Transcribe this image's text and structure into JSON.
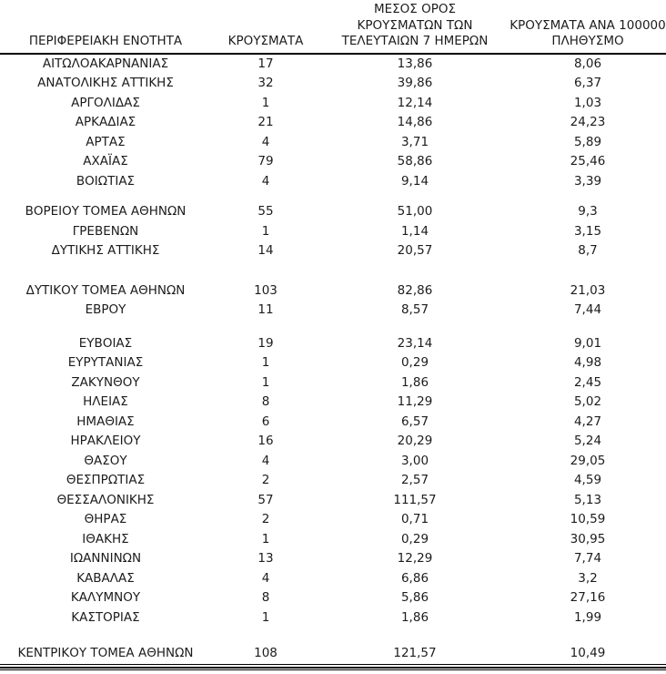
{
  "page": {
    "background": "#ffffff",
    "text_color": "#1c1c1c",
    "rule_color": "#000000"
  },
  "table": {
    "header": {
      "region": [
        "ΠΕΡΙΦΕΡΕΙΑΚΗ ΕΝΟΤΗΤΑ"
      ],
      "cases": [
        "ΚΡΟΥΣΜΑΤΑ"
      ],
      "avg7": [
        "ΜΕΣΟΣ ΟΡΟΣ",
        "ΚΡΟΥΣΜΑΤΩΝ ΤΩΝ",
        "ΤΕΛΕΥΤΑΙΩΝ 7 ΗΜΕΡΩΝ"
      ],
      "per100k": [
        "ΚΡΟΥΣΜΑΤΑ ΑΝΑ 100000",
        "ΠΛΗΘΥΣΜΟ"
      ]
    },
    "spacers": [
      {
        "after_row": 6,
        "height": 12
      },
      {
        "after_row": 9,
        "height": 22
      },
      {
        "after_row": 11,
        "height": 15
      },
      {
        "after_row": 26,
        "height": 18
      }
    ]
  },
  "chart_data": {
    "type": "table",
    "title": "",
    "columns": [
      "ΠΕΡΙΦΕΡΕΙΑΚΗ ΕΝΟΤΗΤΑ",
      "ΚΡΟΥΣΜΑΤΑ",
      "ΜΕΣΟΣ ΟΡΟΣ ΚΡΟΥΣΜΑΤΩΝ ΤΩΝ ΤΕΛΕΥΤΑΙΩΝ 7 ΗΜΕΡΩΝ",
      "ΚΡΟΥΣΜΑΤΑ ΑΝΑ 100000 ΠΛΗΘΥΣΜΟ"
    ],
    "rows": [
      [
        "ΑΙΤΩΛΟΑΚΑΡΝΑΝΙΑΣ",
        "17",
        "13,86",
        "8,06"
      ],
      [
        "ΑΝΑΤΟΛΙΚΗΣ ΑΤΤΙΚΗΣ",
        "32",
        "39,86",
        "6,37"
      ],
      [
        "ΑΡΓΟΛΙΔΑΣ",
        "1",
        "12,14",
        "1,03"
      ],
      [
        "ΑΡΚΑΔΙΑΣ",
        "21",
        "14,86",
        "24,23"
      ],
      [
        "ΑΡΤΑΣ",
        "4",
        "3,71",
        "5,89"
      ],
      [
        "ΑΧΑΪΑΣ",
        "79",
        "58,86",
        "25,46"
      ],
      [
        "ΒΟΙΩΤΙΑΣ",
        "4",
        "9,14",
        "3,39"
      ],
      [
        "ΒΟΡΕΙΟΥ ΤΟΜΕΑ ΑΘΗΝΩΝ",
        "55",
        "51,00",
        "9,3"
      ],
      [
        "ΓΡΕΒΕΝΩΝ",
        "1",
        "1,14",
        "3,15"
      ],
      [
        "ΔΥΤΙΚΗΣ ΑΤΤΙΚΗΣ",
        "14",
        "20,57",
        "8,7"
      ],
      [
        "ΔΥΤΙΚΟΥ ΤΟΜΕΑ ΑΘΗΝΩΝ",
        "103",
        "82,86",
        "21,03"
      ],
      [
        "ΕΒΡΟΥ",
        "11",
        "8,57",
        "7,44"
      ],
      [
        "ΕΥΒΟΙΑΣ",
        "19",
        "23,14",
        "9,01"
      ],
      [
        "ΕΥΡΥΤΑΝΙΑΣ",
        "1",
        "0,29",
        "4,98"
      ],
      [
        "ΖΑΚΥΝΘΟΥ",
        "1",
        "1,86",
        "2,45"
      ],
      [
        "ΗΛΕΙΑΣ",
        "8",
        "11,29",
        "5,02"
      ],
      [
        "ΗΜΑΘΙΑΣ",
        "6",
        "6,57",
        "4,27"
      ],
      [
        "ΗΡΑΚΛΕΙΟΥ",
        "16",
        "20,29",
        "5,24"
      ],
      [
        "ΘΑΣΟΥ",
        "4",
        "3,00",
        "29,05"
      ],
      [
        "ΘΕΣΠΡΩΤΙΑΣ",
        "2",
        "2,57",
        "4,59"
      ],
      [
        "ΘΕΣΣΑΛΟΝΙΚΗΣ",
        "57",
        "111,57",
        "5,13"
      ],
      [
        "ΘΗΡΑΣ",
        "2",
        "0,71",
        "10,59"
      ],
      [
        "ΙΘΑΚΗΣ",
        "1",
        "0,29",
        "30,95"
      ],
      [
        "ΙΩΑΝΝΙΝΩΝ",
        "13",
        "12,29",
        "7,74"
      ],
      [
        "ΚΑΒΑΛΑΣ",
        "4",
        "6,86",
        "3,2"
      ],
      [
        "ΚΑΛΥΜΝΟΥ",
        "8",
        "5,86",
        "27,16"
      ],
      [
        "ΚΑΣΤΟΡΙΑΣ",
        "1",
        "1,86",
        "1,99"
      ],
      [
        "ΚΕΝΤΡΙΚΟΥ ΤΟΜΕΑ ΑΘΗΝΩΝ",
        "108",
        "121,57",
        "10,49"
      ]
    ],
    "layout": {
      "decimal_separator": ",",
      "alignment": "center",
      "header_rule": "2px solid",
      "bottom_rule": "double",
      "blank_row_after": [
        "ΒΟΙΩΤΙΑΣ",
        "ΔΥΤΙΚΗΣ ΑΤΤΙΚΗΣ",
        "ΕΒΡΟΥ",
        "ΚΑΣΤΟΡΙΑΣ"
      ]
    }
  }
}
